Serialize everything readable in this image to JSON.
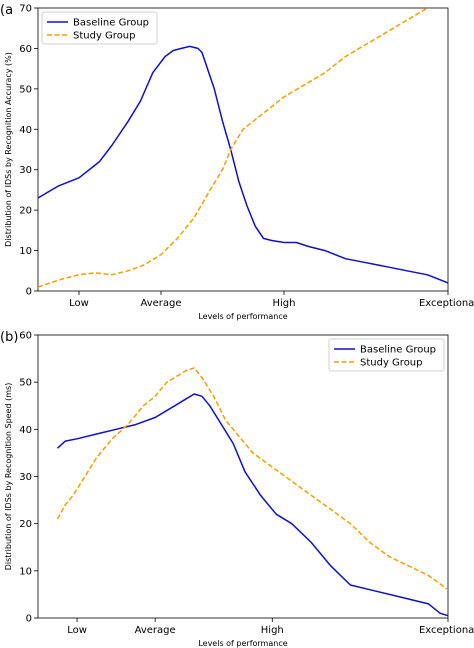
{
  "colors": {
    "baseline": "#1010c8",
    "study": "#f0a000"
  },
  "chart_data": [
    {
      "type": "line",
      "panel_label": "(a",
      "xlabel": "Levels of performance",
      "ylabel": "Distribution of IDSs by Recognition Accuracy (%)",
      "xlim": [
        0,
        100
      ],
      "ylim": [
        0,
        70
      ],
      "yticks": [
        0,
        10,
        20,
        30,
        40,
        50,
        60,
        70
      ],
      "categories": [
        "Low",
        "Average",
        "High",
        "Exceptional"
      ],
      "category_positions": [
        10,
        30,
        60,
        100
      ],
      "legend_position": "top-left",
      "series": [
        {
          "name": "Baseline Group",
          "style": "solid",
          "x": [
            0,
            5,
            10,
            15,
            18,
            22,
            25,
            28,
            31,
            33,
            35,
            37,
            39,
            40,
            41,
            42,
            43,
            45,
            47,
            49,
            51,
            53,
            55,
            57,
            60,
            63,
            66,
            70,
            75,
            80,
            85,
            90,
            95,
            100
          ],
          "y": [
            23,
            26,
            28,
            32,
            36,
            42,
            47,
            54,
            58,
            59.5,
            60,
            60.5,
            60,
            59,
            56,
            53,
            50,
            42,
            35,
            27,
            21,
            16,
            13,
            12.5,
            12,
            12,
            11,
            10,
            8,
            7,
            6,
            5,
            4,
            2
          ]
        },
        {
          "name": "Study Group",
          "style": "dashed",
          "x": [
            0,
            3,
            6,
            10,
            14,
            18,
            22,
            26,
            30,
            34,
            38,
            42,
            45,
            47,
            50,
            55,
            60,
            65,
            70,
            75,
            80,
            85,
            90,
            95,
            100
          ],
          "y": [
            1,
            2,
            3,
            4,
            4.5,
            4,
            5,
            6.5,
            9,
            13,
            18,
            25,
            30,
            35,
            40,
            44,
            48,
            51,
            54,
            58,
            61,
            64,
            67,
            70,
            72
          ]
        }
      ]
    },
    {
      "type": "line",
      "panel_label": "(b)",
      "xlabel": "Levels of performance",
      "ylabel": "Distribution of IDSs by Recognition Speed (ms)",
      "xlim": [
        -5,
        100
      ],
      "ylim": [
        0,
        60
      ],
      "yticks": [
        0,
        10,
        20,
        30,
        40,
        50,
        60
      ],
      "categories": [
        "Low",
        "Average",
        "High",
        "Exceptional"
      ],
      "category_positions": [
        5,
        25,
        55,
        100
      ],
      "legend_position": "top-right",
      "series": [
        {
          "name": "Baseline Group",
          "style": "solid",
          "x": [
            0,
            2,
            5,
            10,
            15,
            20,
            25,
            30,
            33,
            35,
            37,
            39,
            42,
            45,
            48,
            52,
            56,
            60,
            65,
            70,
            75,
            80,
            85,
            90,
            95,
            98,
            100
          ],
          "y": [
            36,
            37.5,
            38,
            39,
            40,
            41,
            42.5,
            45,
            46.5,
            47.5,
            47,
            45,
            41,
            37,
            31,
            26,
            22,
            20,
            16,
            11,
            7,
            6,
            5,
            4,
            3,
            1,
            0.5
          ]
        },
        {
          "name": "Study Group",
          "style": "dashed",
          "x": [
            0,
            2,
            4,
            7,
            10,
            14,
            18,
            22,
            25,
            28,
            30,
            33,
            35,
            37,
            40,
            43,
            47,
            50,
            55,
            60,
            65,
            70,
            75,
            80,
            85,
            90,
            95,
            100
          ],
          "y": [
            21,
            24,
            26,
            30,
            34,
            38,
            41,
            45,
            47,
            50,
            51,
            52.5,
            53,
            51,
            47,
            42,
            38,
            35,
            32,
            29,
            26,
            23,
            20,
            16,
            13,
            11,
            9,
            6
          ]
        }
      ]
    }
  ]
}
